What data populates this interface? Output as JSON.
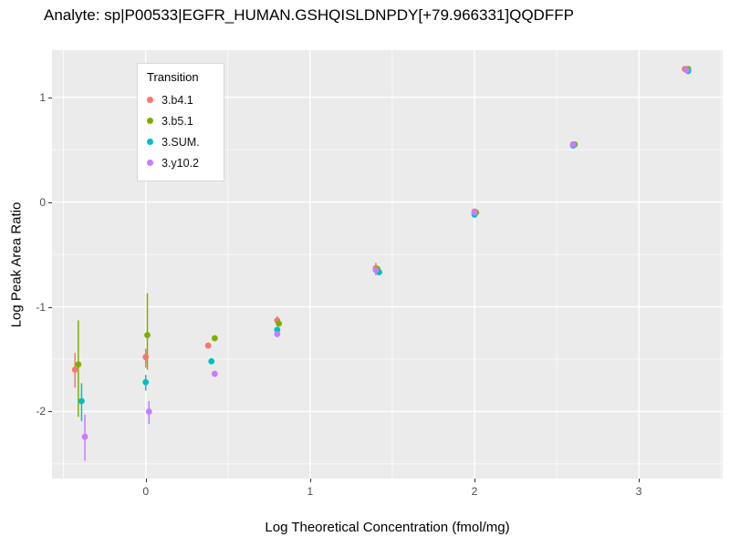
{
  "chart_data": {
    "type": "scatter",
    "title": "Analyte: sp|P00533|EGFR_HUMAN.GSHQISLDNPDY[+79.966331]QQDFFP",
    "xlabel": "Log Theoretical Concentration (fmol/mg)",
    "ylabel": "Log Peak Area Ratio",
    "legend_title": "Transition",
    "legend_position": "top-left-inside",
    "grid": true,
    "plot_background": "#EBEBEB",
    "gridline_color": "#FFFFFF",
    "xlim": [
      -0.57,
      3.51
    ],
    "ylim": [
      -2.64,
      1.45
    ],
    "x_ticks": [
      0,
      1,
      2,
      3
    ],
    "x_tick_labels": [
      "0",
      "1",
      "2",
      "3"
    ],
    "y_ticks": [
      -2,
      -1,
      0,
      1
    ],
    "y_tick_labels": [
      "-2",
      "-1",
      "0",
      "1"
    ],
    "x_minor": [
      -0.5,
      0.5,
      1.5,
      2.5,
      3.5
    ],
    "y_minor": [
      -2.5,
      -1.5,
      -0.5,
      0.5
    ],
    "series": [
      {
        "name": "3.b4.1",
        "color": "#F8766D",
        "points": [
          {
            "x": -0.43,
            "y": -1.6,
            "lo": -1.77,
            "hi": -1.44
          },
          {
            "x": 0.0,
            "y": -1.48,
            "lo": -1.58,
            "hi": -1.4
          },
          {
            "x": 0.38,
            "y": -1.37
          },
          {
            "x": 0.8,
            "y": -1.13,
            "lo": -1.18,
            "hi": -1.09
          },
          {
            "x": 1.4,
            "y": -0.63,
            "lo": -0.7,
            "hi": -0.58
          },
          {
            "x": 2.0,
            "y": -0.09
          },
          {
            "x": 2.6,
            "y": 0.55
          },
          {
            "x": 3.28,
            "y": 1.27
          }
        ]
      },
      {
        "name": "3.b5.1",
        "color": "#7CAE00",
        "points": [
          {
            "x": -0.41,
            "y": -1.55,
            "lo": -2.05,
            "hi": -1.13
          },
          {
            "x": 0.01,
            "y": -1.27,
            "lo": -1.6,
            "hi": -0.87
          },
          {
            "x": 0.42,
            "y": -1.3
          },
          {
            "x": 0.81,
            "y": -1.16
          },
          {
            "x": 1.41,
            "y": -0.64
          },
          {
            "x": 2.01,
            "y": -0.1
          },
          {
            "x": 2.61,
            "y": 0.55
          },
          {
            "x": 3.3,
            "y": 1.27
          }
        ]
      },
      {
        "name": "3.SUM.",
        "color": "#00BFC4",
        "points": [
          {
            "x": -0.39,
            "y": -1.9,
            "lo": -2.09,
            "hi": -1.73
          },
          {
            "x": 0.0,
            "y": -1.72,
            "lo": -1.8,
            "hi": -1.65
          },
          {
            "x": 0.4,
            "y": -1.52
          },
          {
            "x": 0.8,
            "y": -1.22
          },
          {
            "x": 1.42,
            "y": -0.67
          },
          {
            "x": 2.0,
            "y": -0.12
          },
          {
            "x": 2.6,
            "y": 0.54
          },
          {
            "x": 3.3,
            "y": 1.25
          }
        ]
      },
      {
        "name": "3.y10.2",
        "color": "#C77CFF",
        "points": [
          {
            "x": -0.37,
            "y": -2.24,
            "lo": -2.47,
            "hi": -2.03
          },
          {
            "x": 0.02,
            "y": -2.0,
            "lo": -2.12,
            "hi": -1.9
          },
          {
            "x": 0.42,
            "y": -1.64
          },
          {
            "x": 0.8,
            "y": -1.26
          },
          {
            "x": 1.4,
            "y": -0.65
          },
          {
            "x": 2.0,
            "y": -0.1
          },
          {
            "x": 2.6,
            "y": 0.55
          },
          {
            "x": 3.29,
            "y": 1.26
          }
        ]
      }
    ]
  }
}
